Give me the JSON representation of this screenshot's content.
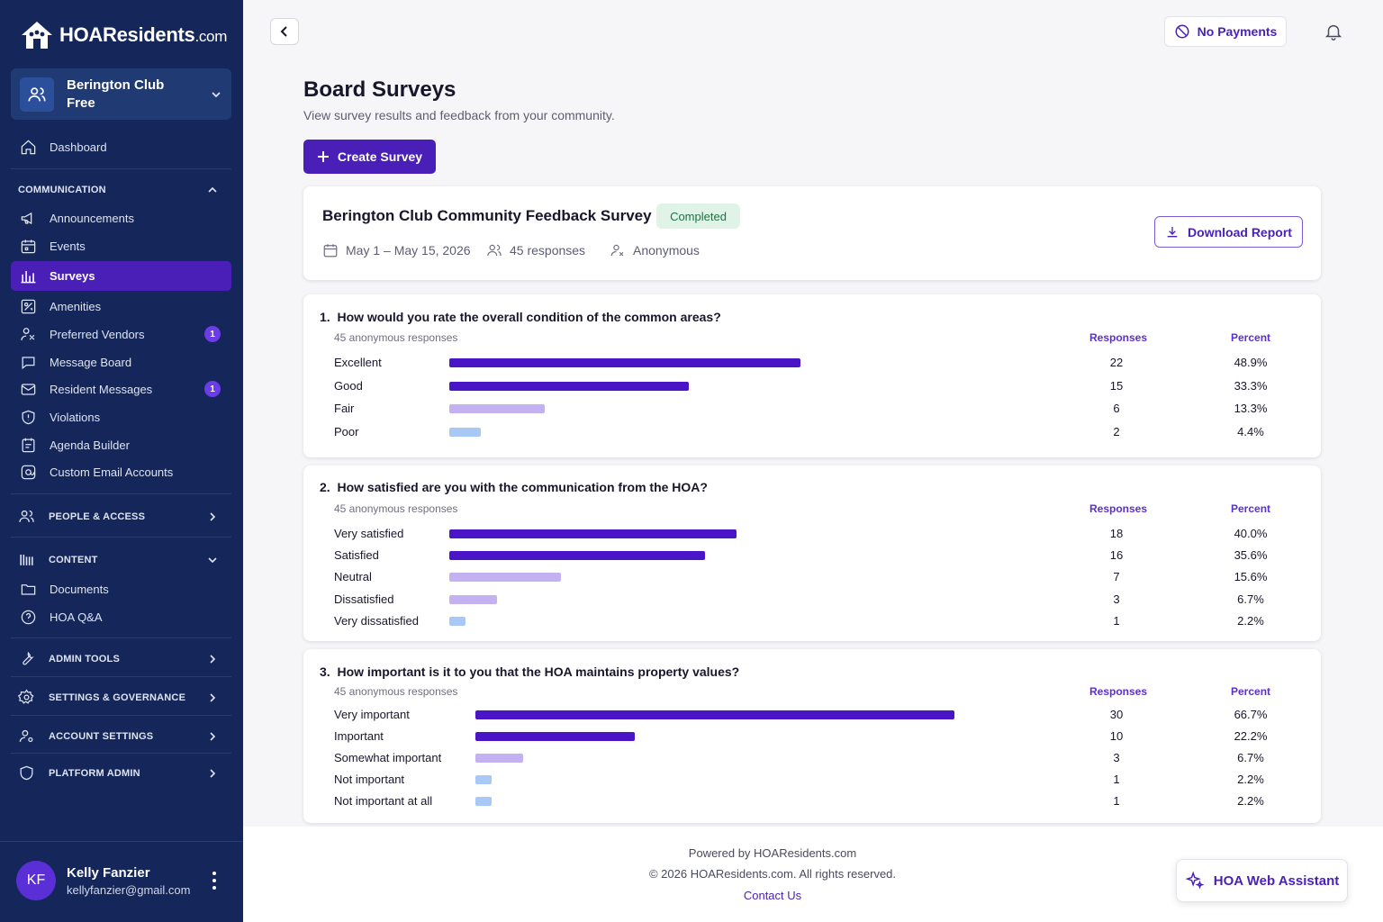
{
  "app": {
    "brand_main": "HOAResidents",
    "brand_suffix": ".com"
  },
  "org": {
    "line1": "Berington Club",
    "line2": "Free"
  },
  "sidebar": {
    "dashboard": "Dashboard",
    "communication_header": "COMMUNICATION",
    "communication_items": [
      {
        "label": "Announcements"
      },
      {
        "label": "Events"
      },
      {
        "label": "Surveys"
      },
      {
        "label": "Amenities"
      },
      {
        "label": "Preferred Vendors",
        "badge": "1"
      },
      {
        "label": "Message Board"
      },
      {
        "label": "Resident Messages",
        "badge": "1"
      },
      {
        "label": "Violations"
      },
      {
        "label": "Agenda Builder"
      },
      {
        "label": "Custom Email Accounts"
      }
    ],
    "people_header": "PEOPLE & ACCESS",
    "content_header": "CONTENT",
    "content_items": [
      {
        "label": "Documents"
      },
      {
        "label": "HOA Q&A"
      }
    ],
    "admin_header": "ADMIN TOOLS",
    "settings_header": "SETTINGS & GOVERNANCE",
    "account_header": "ACCOUNT SETTINGS",
    "platform_header": "PLATFORM ADMIN"
  },
  "user": {
    "initials": "KF",
    "name": "Kelly Fanzier",
    "email": "kellyfanzier@gmail.com"
  },
  "topbar": {
    "payments_label": "No Payments"
  },
  "page": {
    "title": "Board Surveys",
    "subtitle": "View survey results and feedback from your community.",
    "create_label": "Create Survey"
  },
  "survey": {
    "title": "Berington Club Community Feedback Survey",
    "status": "Completed",
    "dates": "May 1 – May 15, 2026",
    "responses": "45 responses",
    "mode": "Anonymous",
    "download_label": "Download Report"
  },
  "colors": {
    "primary": "#4a1fb8",
    "bar_strong": "#4a14c7",
    "bar_light": "#c4b1f2",
    "bar_blue": "#a8c8f5",
    "sidebar_bg": "#14265a"
  },
  "questions": [
    {
      "number": "1.",
      "text": "How would you rate the overall condition of the common areas?",
      "sub": "45 anonymous responses",
      "responses_header": "Responses",
      "percent_header": "Percent",
      "options": [
        {
          "label": "Excellent",
          "count": "22",
          "percent": "48.9%",
          "value": 48.9,
          "tone": "strong"
        },
        {
          "label": "Good",
          "count": "15",
          "percent": "33.3%",
          "value": 33.3,
          "tone": "strong"
        },
        {
          "label": "Fair",
          "count": "6",
          "percent": "13.3%",
          "value": 13.3,
          "tone": "light"
        },
        {
          "label": "Poor",
          "count": "2",
          "percent": "4.4%",
          "value": 4.4,
          "tone": "blue"
        }
      ]
    },
    {
      "number": "2.",
      "text": "How satisfied are you with the communication from the HOA?",
      "sub": "45 anonymous responses",
      "responses_header": "Responses",
      "percent_header": "Percent",
      "options": [
        {
          "label": "Very satisfied",
          "count": "18",
          "percent": "40.0%",
          "value": 40.0,
          "tone": "strong"
        },
        {
          "label": "Satisfied",
          "count": "16",
          "percent": "35.6%",
          "value": 35.6,
          "tone": "strong"
        },
        {
          "label": "Neutral",
          "count": "7",
          "percent": "15.6%",
          "value": 15.6,
          "tone": "light"
        },
        {
          "label": "Dissatisfied",
          "count": "3",
          "percent": "6.7%",
          "value": 6.7,
          "tone": "light"
        },
        {
          "label": "Very dissatisfied",
          "count": "1",
          "percent": "2.2%",
          "value": 2.2,
          "tone": "blue"
        }
      ]
    },
    {
      "number": "3.",
      "text": "How important is it to you that the HOA maintains property values?",
      "sub": "45 anonymous responses",
      "responses_header": "Responses",
      "percent_header": "Percent",
      "options": [
        {
          "label": "Very important",
          "count": "30",
          "percent": "66.7%",
          "value": 66.7,
          "tone": "strong"
        },
        {
          "label": "Important",
          "count": "10",
          "percent": "22.2%",
          "value": 22.2,
          "tone": "strong"
        },
        {
          "label": "Somewhat important",
          "count": "3",
          "percent": "6.7%",
          "value": 6.7,
          "tone": "light"
        },
        {
          "label": "Not important",
          "count": "1",
          "percent": "2.2%",
          "value": 2.2,
          "tone": "blue"
        },
        {
          "label": "Not important at all",
          "count": "1",
          "percent": "2.2%",
          "value": 2.2,
          "tone": "blue"
        }
      ]
    }
  ],
  "footer": {
    "powered": "Powered by HOAResidents.com",
    "copyright": "© 2026 HOAResidents.com. All rights reserved.",
    "contact": "Contact Us"
  },
  "assistant": {
    "label": "HOA Web Assistant"
  }
}
